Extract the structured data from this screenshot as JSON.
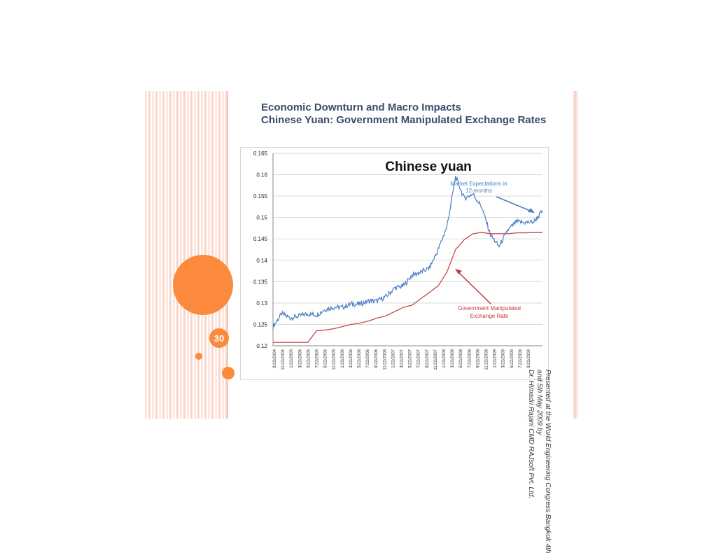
{
  "slide": {
    "number": "30",
    "title_line1": "Economic Downturn and Macro Impacts",
    "title_line2": "Chinese Yuan: Government Manipulated Exchange Rates",
    "side_note_line1": "Presented at the World Engineering Congress Bangkok 4th",
    "side_note_line2": "and 5th May 2009 by",
    "side_note_line3": "Dr. Himadri Rajani CMD RAJsoft Pvt. Ltd.",
    "colors": {
      "accent": "#fb8a3c",
      "title": "#3d4a6b"
    }
  },
  "chart_data": {
    "type": "line",
    "title": "Chinese yuan",
    "ylim": [
      0.12,
      0.165
    ],
    "yticks": [
      "0.12",
      "0.125",
      "0.13",
      "0.135",
      "0.14",
      "0.145",
      "0.15",
      "0.155",
      "0.16",
      "0.165"
    ],
    "xtick_labels": [
      "9/22/2004",
      "11/22/2004",
      "1/22/2005",
      "3/22/2005",
      "5/22/2005",
      "7/22/2005",
      "9/22/2005",
      "11/22/2005",
      "1/22/2006",
      "3/22/2006",
      "5/22/2006",
      "7/22/2006",
      "9/22/2006",
      "11/22/2006",
      "1/22/2007",
      "3/22/2007",
      "5/22/2007",
      "7/22/2007",
      "9/22/2007",
      "11/22/2007",
      "1/22/2008",
      "3/22/2008",
      "5/22/2008",
      "7/22/2008",
      "9/22/2008",
      "11/22/2008",
      "1/22/2009",
      "3/22/2009",
      "5/22/2009",
      "7/22/2009",
      "9/22/2009"
    ],
    "x_points": [
      "9/22/2004",
      "11/22/2004",
      "1/22/2005",
      "3/22/2005",
      "5/22/2005",
      "7/22/2005",
      "9/22/2005",
      "11/22/2005",
      "1/22/2006",
      "3/22/2006",
      "5/22/2006",
      "7/22/2006",
      "9/22/2006",
      "11/22/2006",
      "1/22/2007",
      "3/22/2007",
      "5/22/2007",
      "7/22/2007",
      "9/22/2007",
      "11/22/2007",
      "1/22/2008",
      "3/22/2008",
      "5/22/2008",
      "7/22/2008",
      "9/22/2008",
      "11/22/2008",
      "1/22/2009",
      "3/22/2009",
      "5/22/2009",
      "7/22/2009",
      "9/22/2009",
      "10/22/2009"
    ],
    "series": [
      {
        "name": "Market Expectations in 12-months",
        "color": "#4a7fc1",
        "values": [
          0.1245,
          0.1275,
          0.1265,
          0.127,
          0.1275,
          0.1272,
          0.1285,
          0.129,
          0.129,
          0.1298,
          0.1297,
          0.1305,
          0.1305,
          0.1315,
          0.1335,
          0.134,
          0.1365,
          0.1372,
          0.1382,
          0.1425,
          0.1478,
          0.1595,
          0.1545,
          0.1555,
          0.1525,
          0.146,
          0.1432,
          0.147,
          0.149,
          0.1488,
          0.149,
          0.1515
        ]
      },
      {
        "name": "Government Manipulated Exchange Rate",
        "color": "#c0393a",
        "values": [
          0.1208,
          0.1208,
          0.1208,
          0.1208,
          0.1208,
          0.1235,
          0.1237,
          0.124,
          0.1245,
          0.125,
          0.1253,
          0.1258,
          0.1265,
          0.127,
          0.128,
          0.129,
          0.1295,
          0.131,
          0.1325,
          0.134,
          0.1372,
          0.1425,
          0.1448,
          0.1462,
          0.1465,
          0.1462,
          0.1462,
          0.1462,
          0.1464,
          0.1464,
          0.1465,
          0.1465
        ]
      }
    ],
    "annotations": [
      {
        "text_line1": "Market Expectations in",
        "text_line2": "12-months",
        "color": "#4a7fc1"
      },
      {
        "text_line1": "Government Manipulated",
        "text_line2": "Exchange Rate",
        "color": "#c0393a"
      }
    ],
    "grid": true
  }
}
